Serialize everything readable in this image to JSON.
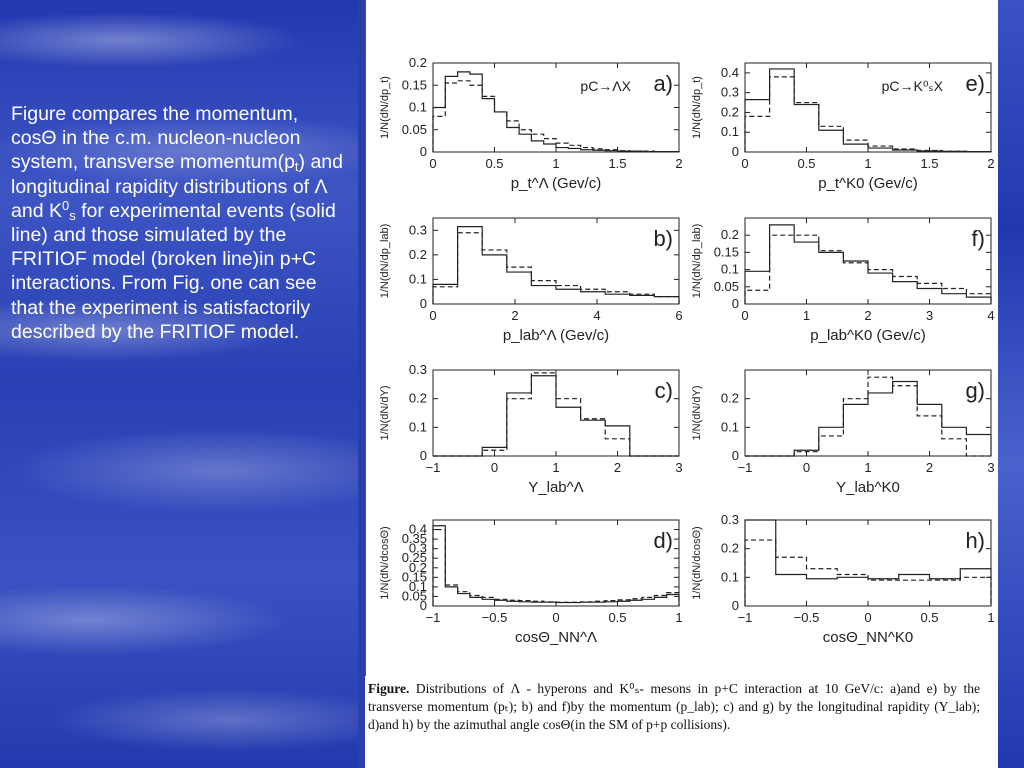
{
  "slide": {
    "text": {
      "p1": "Figure  compares the momentum, cos",
      "p1_sym": "Θ",
      "p2": " in the c.m. nucleon-nucleon system, transverse momentum(p",
      "p2_sub": "t",
      "p3": ") and  longitudinal rapidity distributions of ",
      "p3_sym": "Λ",
      "p4": " and K",
      "p4_sup": "0",
      "p4_sub": "s",
      "p5": " for experimental events (solid line) and those simulated by the FRITIOF model (broken line)in p+C interactions. From Fig. one can see that the experiment is satisfactorily described by the FRITIOF model."
    },
    "caption": {
      "label": "Figure.",
      "text": "Distributions of Λ - hyperons and K⁰ₛ- mesons in p+C interaction at 10 GeV/c: a)and e) by the transverse momentum (pₜ); b) and f)by the momentum (p_lab); c) and g) by the longitudinal rapidity (Y_lab); d)and h) by the azimuthal angle cosΘ(in the SM of p+p collisions)."
    }
  },
  "chart_data": [
    {
      "id": "a",
      "type": "histogram",
      "panel_label": "a)",
      "reaction": "pC→ΛX",
      "xlabel": "p_t^Λ (Gev/c)",
      "ylabel": "1/N(dN/dp_t)",
      "xlim": [
        0,
        2
      ],
      "ylim": [
        0,
        0.2
      ],
      "xticks": [
        "0",
        "0.5",
        "1",
        "1.5",
        "2"
      ],
      "yticks": [
        "0",
        "0.05",
        "0.1",
        "0.15",
        "0.2"
      ],
      "bin_edges": [
        0,
        0.1,
        0.2,
        0.3,
        0.4,
        0.5,
        0.6,
        0.7,
        0.8,
        0.9,
        1.0,
        1.1,
        1.2,
        1.3,
        1.4,
        1.5,
        1.6,
        1.7,
        1.8,
        1.9,
        2.0
      ],
      "series": [
        {
          "name": "experiment",
          "style": "solid",
          "values": [
            0.1,
            0.17,
            0.18,
            0.175,
            0.12,
            0.09,
            0.055,
            0.04,
            0.025,
            0.018,
            0.01,
            0.008,
            0.005,
            0.004,
            0.003,
            0.002,
            0.002,
            0.001,
            0.001,
            0.001
          ]
        },
        {
          "name": "FRITIOF",
          "style": "dashed",
          "values": [
            0.08,
            0.155,
            0.16,
            0.15,
            0.125,
            0.09,
            0.07,
            0.05,
            0.04,
            0.03,
            0.02,
            0.015,
            0.01,
            0.007,
            0.005,
            0.003,
            0.002,
            0.002,
            0.001,
            0.001
          ]
        }
      ]
    },
    {
      "id": "e",
      "type": "histogram",
      "panel_label": "e)",
      "reaction": "pC→K⁰ₛX",
      "xlabel": "p_t^K0 (Gev/c)",
      "ylabel": "1/N(dN/dp_t)",
      "xlim": [
        0,
        2
      ],
      "ylim": [
        0,
        0.45
      ],
      "xticks": [
        "0",
        "0.5",
        "1",
        "1.5",
        "2"
      ],
      "yticks": [
        "0",
        "0.1",
        "0.2",
        "0.3",
        "0.4"
      ],
      "bin_edges": [
        0,
        0.2,
        0.4,
        0.6,
        0.8,
        1.0,
        1.2,
        1.4,
        1.6,
        1.8,
        2.0
      ],
      "series": [
        {
          "name": "experiment",
          "style": "solid",
          "values": [
            0.265,
            0.42,
            0.24,
            0.11,
            0.04,
            0.02,
            0.01,
            0.005,
            0.003,
            0.002
          ]
        },
        {
          "name": "FRITIOF",
          "style": "dashed",
          "values": [
            0.18,
            0.38,
            0.25,
            0.13,
            0.06,
            0.03,
            0.015,
            0.008,
            0.004,
            0.002
          ]
        }
      ]
    },
    {
      "id": "b",
      "type": "histogram",
      "panel_label": "b)",
      "xlabel": "p_lab^Λ (Gev/c)",
      "ylabel": "1/N(dN/dp_lab)",
      "xlim": [
        0,
        6
      ],
      "ylim": [
        0,
        0.35
      ],
      "xticks": [
        "0",
        "2",
        "4",
        "6"
      ],
      "yticks": [
        "0",
        "0.1",
        "0.2",
        "0.3"
      ],
      "bin_edges": [
        0,
        0.6,
        1.2,
        1.8,
        2.4,
        3.0,
        3.6,
        4.2,
        4.8,
        5.4,
        6.0
      ],
      "series": [
        {
          "name": "experiment",
          "style": "solid",
          "values": [
            0.08,
            0.315,
            0.2,
            0.13,
            0.075,
            0.06,
            0.05,
            0.04,
            0.035,
            0.03
          ]
        },
        {
          "name": "FRITIOF",
          "style": "dashed",
          "values": [
            0.07,
            0.29,
            0.22,
            0.15,
            0.095,
            0.075,
            0.06,
            0.05,
            0.04,
            0.03
          ]
        }
      ]
    },
    {
      "id": "f",
      "type": "histogram",
      "panel_label": "f)",
      "xlabel": "p_lab^K0 (Gev/c)",
      "ylabel": "1/N(dN/dp_lab)",
      "xlim": [
        0,
        4
      ],
      "ylim": [
        0,
        0.25
      ],
      "xticks": [
        "0",
        "1",
        "2",
        "3",
        "4"
      ],
      "yticks": [
        "0",
        "0.05",
        "0.1",
        "0.15",
        "0.2"
      ],
      "bin_edges": [
        0,
        0.4,
        0.8,
        1.2,
        1.6,
        2.0,
        2.4,
        2.8,
        3.2,
        3.6,
        4.0
      ],
      "series": [
        {
          "name": "experiment",
          "style": "solid",
          "values": [
            0.095,
            0.23,
            0.18,
            0.15,
            0.125,
            0.09,
            0.065,
            0.045,
            0.03,
            0.02
          ]
        },
        {
          "name": "FRITIOF",
          "style": "dashed",
          "values": [
            0.04,
            0.2,
            0.2,
            0.155,
            0.12,
            0.1,
            0.08,
            0.06,
            0.045,
            0.03
          ]
        }
      ]
    },
    {
      "id": "c",
      "type": "histogram",
      "panel_label": "c)",
      "xlabel": "Y_lab^Λ",
      "ylabel": "1/N(dN/dY)",
      "xlim": [
        -1,
        3
      ],
      "ylim": [
        0,
        0.3
      ],
      "xticks": [
        "−1",
        "0",
        "1",
        "2",
        "3"
      ],
      "yticks": [
        "0",
        "0.1",
        "0.2",
        "0.3"
      ],
      "bin_edges": [
        -1,
        -0.6,
        -0.2,
        0.2,
        0.6,
        1.0,
        1.4,
        1.8,
        2.2,
        2.6,
        3.0
      ],
      "series": [
        {
          "name": "experiment",
          "style": "solid",
          "values": [
            0.0,
            0.0,
            0.03,
            0.22,
            0.28,
            0.17,
            0.125,
            0.105,
            0.0,
            0.0
          ]
        },
        {
          "name": "FRITIOF",
          "style": "dashed",
          "values": [
            0.0,
            0.0,
            0.02,
            0.2,
            0.29,
            0.2,
            0.13,
            0.06,
            0.0,
            0.0
          ]
        }
      ]
    },
    {
      "id": "g",
      "type": "histogram",
      "panel_label": "g)",
      "xlabel": "Y_lab^K0",
      "ylabel": "1/N(dN/dY)",
      "xlim": [
        -1,
        3
      ],
      "ylim": [
        0,
        0.3
      ],
      "xticks": [
        "−1",
        "0",
        "1",
        "2",
        "3"
      ],
      "yticks": [
        "0",
        "0.1",
        "0.2"
      ],
      "bin_edges": [
        -1,
        -0.6,
        -0.2,
        0.2,
        0.6,
        1.0,
        1.4,
        1.8,
        2.2,
        2.6,
        3.0
      ],
      "series": [
        {
          "name": "experiment",
          "style": "solid",
          "values": [
            0.0,
            0.0,
            0.02,
            0.1,
            0.18,
            0.22,
            0.26,
            0.18,
            0.1,
            0.075
          ]
        },
        {
          "name": "FRITIOF",
          "style": "dashed",
          "values": [
            0.0,
            0.0,
            0.015,
            0.07,
            0.2,
            0.275,
            0.245,
            0.14,
            0.06,
            0.0
          ]
        }
      ]
    },
    {
      "id": "d",
      "type": "histogram",
      "panel_label": "d)",
      "xlabel": "cosΘ_NN^Λ",
      "ylabel": "1/N(dN/dcosΘ)",
      "xlim": [
        -1,
        1
      ],
      "ylim": [
        0,
        0.45
      ],
      "xticks": [
        "−1",
        "−0.5",
        "0",
        "0.5",
        "1"
      ],
      "yticks": [
        "0",
        "0.05",
        "0.1",
        "0.15",
        "0.2",
        "0.25",
        "0.3",
        "0.35",
        "0.4"
      ],
      "bin_edges": [
        -1,
        -0.9,
        -0.8,
        -0.7,
        -0.6,
        -0.5,
        -0.4,
        -0.3,
        -0.2,
        -0.1,
        0,
        0.1,
        0.2,
        0.3,
        0.4,
        0.5,
        0.6,
        0.7,
        0.8,
        0.9,
        1.0
      ],
      "series": [
        {
          "name": "experiment",
          "style": "solid",
          "values": [
            0.42,
            0.1,
            0.065,
            0.045,
            0.035,
            0.03,
            0.025,
            0.022,
            0.02,
            0.02,
            0.018,
            0.018,
            0.02,
            0.02,
            0.022,
            0.025,
            0.03,
            0.035,
            0.045,
            0.06
          ]
        },
        {
          "name": "FRITIOF",
          "style": "dashed",
          "values": [
            0.4,
            0.11,
            0.075,
            0.055,
            0.045,
            0.035,
            0.03,
            0.028,
            0.025,
            0.022,
            0.02,
            0.02,
            0.022,
            0.025,
            0.028,
            0.032,
            0.038,
            0.045,
            0.055,
            0.07
          ]
        }
      ]
    },
    {
      "id": "h",
      "type": "histogram",
      "panel_label": "h)",
      "xlabel": "cosΘ_NN^K0",
      "ylabel": "1/N(dN/dcosΘ)",
      "xlim": [
        -1,
        1
      ],
      "ylim": [
        0,
        0.3
      ],
      "xticks": [
        "−1",
        "−0.5",
        "0",
        "0.5",
        "1"
      ],
      "yticks": [
        "0",
        "0.1",
        "0.2",
        "0.3"
      ],
      "bin_edges": [
        -1,
        -0.75,
        -0.5,
        -0.25,
        0,
        0.25,
        0.5,
        0.75,
        1.0
      ],
      "series": [
        {
          "name": "experiment",
          "style": "solid",
          "values": [
            0.3,
            0.11,
            0.095,
            0.1,
            0.095,
            0.11,
            0.095,
            0.13
          ]
        },
        {
          "name": "FRITIOF",
          "style": "dashed",
          "values": [
            0.23,
            0.17,
            0.13,
            0.11,
            0.09,
            0.09,
            0.09,
            0.1
          ]
        }
      ]
    }
  ]
}
